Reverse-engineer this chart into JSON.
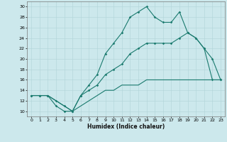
{
  "xlabel": "Humidex (Indice chaleur)",
  "ylabel": "",
  "background_color": "#cce8ec",
  "line_color": "#1a7a6e",
  "xlim": [
    -0.5,
    23.5
  ],
  "ylim": [
    9,
    31
  ],
  "xticks": [
    0,
    1,
    2,
    3,
    4,
    5,
    6,
    7,
    8,
    9,
    10,
    11,
    12,
    13,
    14,
    15,
    16,
    17,
    18,
    19,
    20,
    21,
    22,
    23
  ],
  "yticks": [
    10,
    12,
    14,
    16,
    18,
    20,
    22,
    24,
    26,
    28,
    30
  ],
  "line1": {
    "x": [
      0,
      1,
      2,
      3,
      4,
      5,
      6,
      7,
      8,
      9,
      10,
      11,
      12,
      13,
      14,
      15,
      16,
      17,
      18,
      19,
      20,
      21,
      22,
      23
    ],
    "y": [
      13,
      13,
      13,
      11,
      10,
      10,
      13,
      15,
      17,
      21,
      23,
      25,
      28,
      29,
      30,
      28,
      27,
      27,
      29,
      25,
      24,
      22,
      16,
      16
    ]
  },
  "line2": {
    "x": [
      0,
      1,
      2,
      3,
      4,
      5,
      6,
      7,
      8,
      9,
      10,
      11,
      12,
      13,
      14,
      15,
      16,
      17,
      18,
      19,
      20,
      21,
      22,
      23
    ],
    "y": [
      13,
      13,
      13,
      12,
      11,
      10,
      13,
      14,
      15,
      17,
      18,
      19,
      21,
      22,
      23,
      23,
      23,
      23,
      24,
      25,
      24,
      22,
      20,
      16
    ]
  },
  "line3": {
    "x": [
      0,
      1,
      2,
      3,
      4,
      5,
      6,
      7,
      8,
      9,
      10,
      11,
      12,
      13,
      14,
      15,
      16,
      17,
      18,
      19,
      20,
      21,
      22,
      23
    ],
    "y": [
      13,
      13,
      13,
      12,
      11,
      10,
      11,
      12,
      13,
      14,
      14,
      15,
      15,
      15,
      16,
      16,
      16,
      16,
      16,
      16,
      16,
      16,
      16,
      16
    ]
  }
}
